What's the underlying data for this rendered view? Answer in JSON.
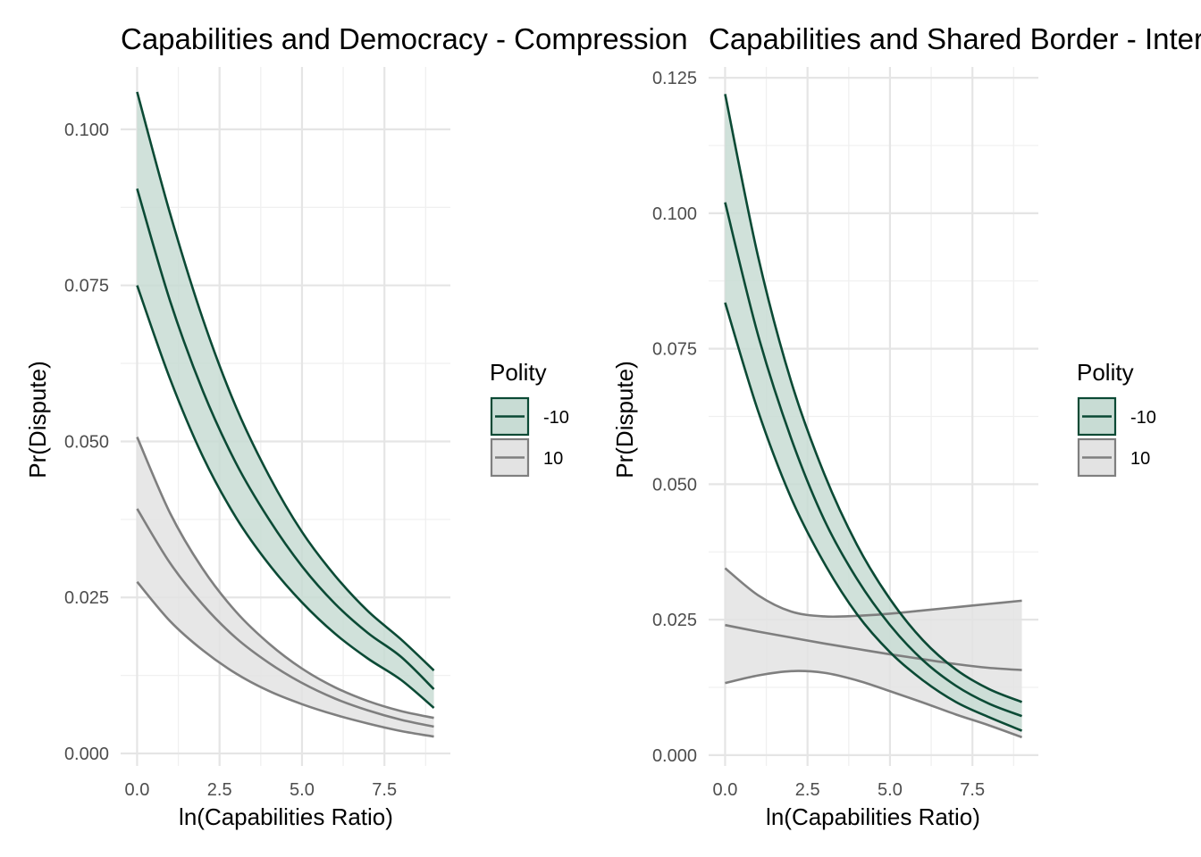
{
  "colors": {
    "dark": "#0b4a35",
    "darkFill": "#c8dcd4",
    "grey": "#7f7f7f",
    "greyFill": "#e3e3e3"
  },
  "chart_data": [
    {
      "type": "line",
      "title": "Capabilities and Democracy - Compression",
      "xlabel": "ln(Capabilities Ratio)",
      "ylabel": "Pr(Dispute)",
      "xlim": [
        -0.5,
        9.5
      ],
      "ylim": [
        -0.002,
        0.11
      ],
      "x_ticks": [
        0,
        2.5,
        5,
        7.5
      ],
      "x_tick_labels": [
        "0.0",
        "2.5",
        "5.0",
        "7.5"
      ],
      "y_ticks": [
        0,
        0.025,
        0.05,
        0.075,
        0.1
      ],
      "y_tick_labels": [
        "0.000",
        "0.025",
        "0.050",
        "0.075",
        "0.100"
      ],
      "legend_title": "Polity",
      "legend_position": "right",
      "grid": true,
      "x": [
        0,
        1,
        2,
        3,
        4,
        5,
        6,
        7,
        8,
        9
      ],
      "series": [
        {
          "name": "-10",
          "color": "dark",
          "mean": [
            0.0905,
            0.0725,
            0.058,
            0.0465,
            0.0375,
            0.03,
            0.024,
            0.0193,
            0.0155,
            0.0103
          ],
          "lower": [
            0.075,
            0.06,
            0.0475,
            0.0378,
            0.0303,
            0.0242,
            0.0192,
            0.0152,
            0.0118,
            0.0073
          ],
          "upper": [
            0.106,
            0.0865,
            0.0695,
            0.0555,
            0.0445,
            0.0355,
            0.0285,
            0.0228,
            0.0183,
            0.0133
          ]
        },
        {
          "name": "10",
          "color": "grey",
          "mean": [
            0.0392,
            0.0305,
            0.0238,
            0.0185,
            0.0145,
            0.0113,
            0.0088,
            0.0069,
            0.0054,
            0.0043
          ],
          "lower": [
            0.0275,
            0.0212,
            0.0165,
            0.0128,
            0.01,
            0.0079,
            0.0062,
            0.0048,
            0.0036,
            0.0027
          ],
          "upper": [
            0.0507,
            0.0385,
            0.0295,
            0.0227,
            0.0176,
            0.0136,
            0.0106,
            0.0084,
            0.0068,
            0.0057
          ]
        }
      ]
    },
    {
      "type": "line",
      "title": "Capabilities and Shared Border - Interaction",
      "xlabel": "ln(Capabilities Ratio)",
      "ylabel": "Pr(Dispute)",
      "xlim": [
        -0.5,
        9.5
      ],
      "ylim": [
        -0.002,
        0.127
      ],
      "x_ticks": [
        0,
        2.5,
        5,
        7.5
      ],
      "x_tick_labels": [
        "0.0",
        "2.5",
        "5.0",
        "7.5"
      ],
      "y_ticks": [
        0,
        0.025,
        0.05,
        0.075,
        0.1,
        0.125
      ],
      "y_tick_labels": [
        "0.000",
        "0.025",
        "0.050",
        "0.075",
        "0.100",
        "0.125"
      ],
      "legend_title": "Polity",
      "legend_position": "right",
      "grid": true,
      "x": [
        0,
        1,
        2,
        3,
        4,
        5,
        6,
        7,
        8,
        9
      ],
      "series": [
        {
          "name": "-10",
          "color": "dark",
          "mean": [
            0.102,
            0.0775,
            0.0585,
            0.0435,
            0.0325,
            0.024,
            0.0175,
            0.0128,
            0.0095,
            0.0072
          ],
          "lower": [
            0.0835,
            0.0635,
            0.0475,
            0.0355,
            0.026,
            0.019,
            0.0138,
            0.0098,
            0.007,
            0.0045
          ],
          "upper": [
            0.122,
            0.092,
            0.069,
            0.052,
            0.0388,
            0.0288,
            0.0212,
            0.0158,
            0.0122,
            0.0098
          ]
        },
        {
          "name": "10",
          "color": "grey",
          "mean": [
            0.024,
            0.0228,
            0.0217,
            0.0206,
            0.0196,
            0.0186,
            0.0177,
            0.0168,
            0.0161,
            0.0157
          ],
          "lower": [
            0.0133,
            0.0147,
            0.0155,
            0.0152,
            0.0138,
            0.0118,
            0.0097,
            0.0075,
            0.0055,
            0.0033
          ],
          "upper": [
            0.0345,
            0.0295,
            0.0265,
            0.0256,
            0.0257,
            0.0261,
            0.0267,
            0.0273,
            0.0279,
            0.0285
          ]
        }
      ]
    }
  ]
}
